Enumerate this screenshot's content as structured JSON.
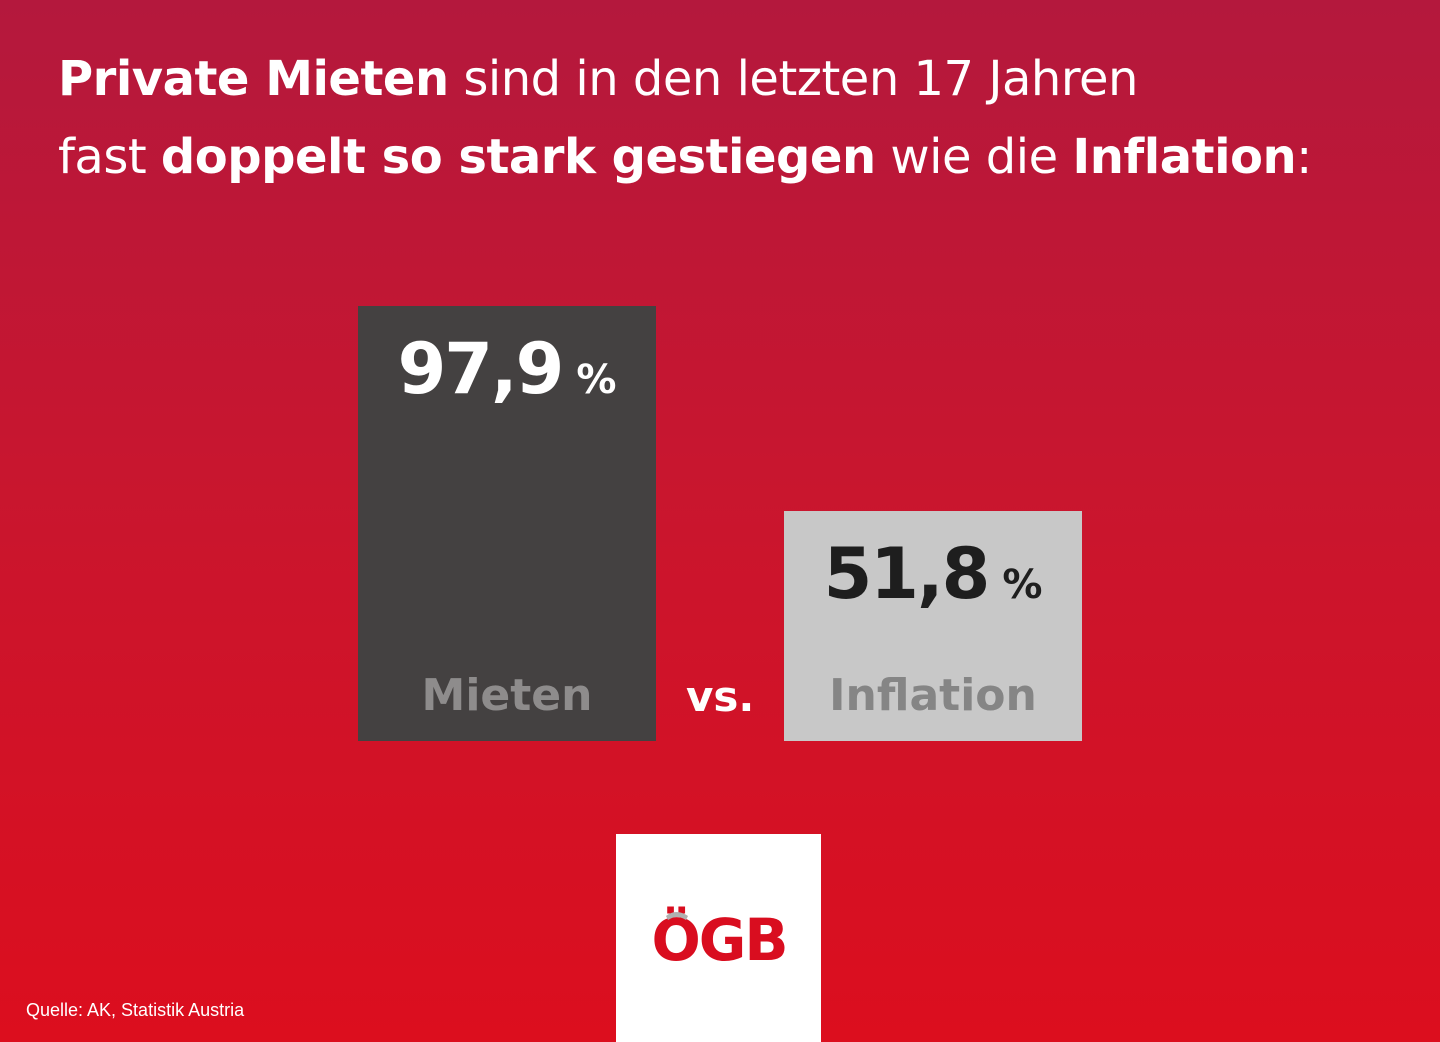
{
  "headline": {
    "line1_bold": "Private Mieten",
    "line1_regular": " sind in den letzten 17 Jahren",
    "line2_regular_a": "fast ",
    "line2_bold_a": "doppelt so stark gestiegen",
    "line2_regular_b": " wie die ",
    "line2_bold_b": "Inflation",
    "line2_regular_c": ":"
  },
  "chart_data": {
    "type": "bar",
    "categories": [
      "Mieten",
      "Inflation"
    ],
    "values": [
      97.9,
      51.8
    ],
    "value_labels": [
      "97,9",
      "51,8"
    ],
    "unit": "%",
    "title": "Private Mieten sind in den letzten 17 Jahren fast doppelt so stark gestiegen wie die Inflation:",
    "xlabel": "",
    "ylabel": "",
    "ylim": [
      0,
      97.9
    ],
    "grid": false,
    "colors": [
      "#444141",
      "#c8c8c8"
    ],
    "value_colors": [
      "#ffffff",
      "#1e1e1e"
    ],
    "label_colors": [
      "#8e8c8c",
      "#858585"
    ]
  },
  "separator": "vs.",
  "logo": {
    "text": "ÖGB",
    "color": "#d90d1f"
  },
  "source": "Quelle: AK, Statistik Austria"
}
